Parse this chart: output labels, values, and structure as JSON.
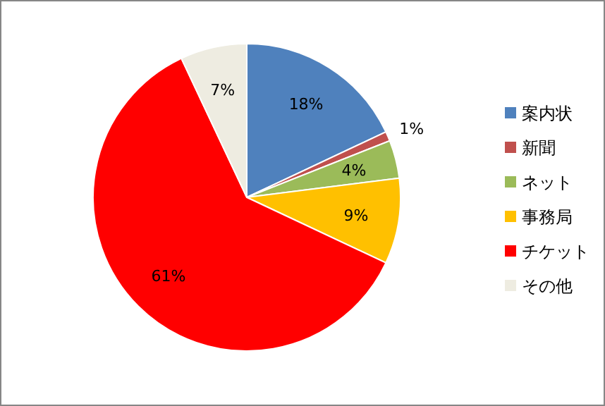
{
  "chart_data": {
    "type": "pie",
    "categories": [
      "案内状",
      "新聞",
      "ネット",
      "事務局",
      "チケット",
      "その他"
    ],
    "values": [
      18,
      1,
      4,
      9,
      61,
      7
    ],
    "colors": [
      "#4f81bd",
      "#c0504d",
      "#9bbb59",
      "#ffc000",
      "#ff0000",
      "#eeece1"
    ],
    "value_labels": [
      "18%",
      "1%",
      "4%",
      "9%",
      "61%",
      "7%"
    ],
    "legend": "right"
  }
}
